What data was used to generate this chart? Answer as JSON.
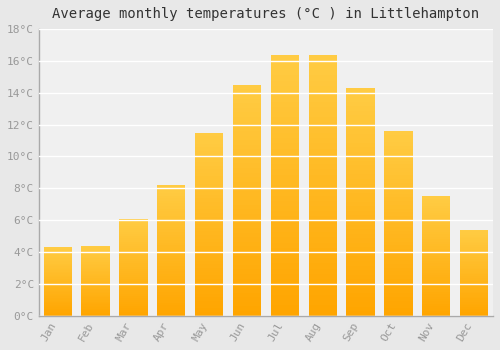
{
  "title": "Average monthly temperatures (°C ) in Littlehampton",
  "months": [
    "Jan",
    "Feb",
    "Mar",
    "Apr",
    "May",
    "Jun",
    "Jul",
    "Aug",
    "Sep",
    "Oct",
    "Nov",
    "Dec"
  ],
  "values": [
    4.3,
    4.4,
    6.1,
    8.2,
    11.5,
    14.5,
    16.4,
    16.4,
    14.3,
    11.6,
    7.5,
    5.4
  ],
  "bar_color_light": "#FFCC44",
  "bar_color_dark": "#FFA500",
  "ylim": [
    0,
    18
  ],
  "yticks": [
    0,
    2,
    4,
    6,
    8,
    10,
    12,
    14,
    16,
    18
  ],
  "background_color": "#E8E8E8",
  "plot_bg_color": "#F0F0F0",
  "grid_color": "#FFFFFF",
  "title_fontsize": 10,
  "tick_fontsize": 8,
  "title_font": "monospace",
  "tick_font": "monospace",
  "tick_color": "#999999",
  "bar_width": 0.75,
  "left_spine_color": "#AAAAAA"
}
